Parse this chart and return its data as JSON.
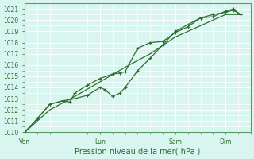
{
  "title": "",
  "xlabel": "Pression niveau de la mer( hPa )",
  "ylabel": "",
  "bg_color": "#d8f5f0",
  "grid_color": "#ffffff",
  "line_color": "#2d6e2d",
  "ylim": [
    1010,
    1021.5
  ],
  "yticks": [
    1010,
    1011,
    1012,
    1013,
    1014,
    1015,
    1016,
    1017,
    1018,
    1019,
    1020,
    1021
  ],
  "xtick_labels": [
    "Ven",
    "Lun",
    "Sam",
    "Dim"
  ],
  "xtick_pos": [
    0,
    3,
    6,
    8
  ],
  "total_days": 9,
  "line1_x": [
    0,
    0.5,
    1.0,
    1.5,
    1.8,
    2.0,
    2.5,
    3.0,
    3.5,
    3.8,
    4.0,
    4.5,
    5.0,
    5.5,
    6.0,
    6.5,
    7.0,
    7.5,
    8.0,
    8.3,
    8.6
  ],
  "line1_y": [
    1010.0,
    1011.2,
    1012.5,
    1012.8,
    1012.7,
    1013.5,
    1014.2,
    1014.8,
    1015.2,
    1015.3,
    1015.4,
    1017.5,
    1018.0,
    1018.1,
    1018.9,
    1019.4,
    1020.2,
    1020.5,
    1020.7,
    1020.9,
    1020.5
  ],
  "line2_x": [
    0,
    0.5,
    1.0,
    1.5,
    2.0,
    2.5,
    3.0,
    3.2,
    3.5,
    3.8,
    4.0,
    4.5,
    5.0,
    5.5,
    6.0,
    6.5,
    7.0,
    7.5,
    8.0,
    8.3,
    8.6
  ],
  "line2_y": [
    1010.0,
    1011.2,
    1012.5,
    1012.8,
    1013.0,
    1013.3,
    1014.0,
    1013.8,
    1013.2,
    1013.5,
    1014.0,
    1015.5,
    1016.6,
    1017.8,
    1019.0,
    1019.6,
    1020.2,
    1020.3,
    1020.8,
    1021.0,
    1020.5
  ],
  "line3_x": [
    0,
    1.0,
    2.0,
    3.0,
    4.0,
    5.0,
    6.0,
    7.0,
    8.0,
    8.6
  ],
  "line3_y": [
    1010.0,
    1012.0,
    1013.2,
    1014.5,
    1015.8,
    1017.0,
    1018.5,
    1019.5,
    1020.5,
    1020.5
  ]
}
